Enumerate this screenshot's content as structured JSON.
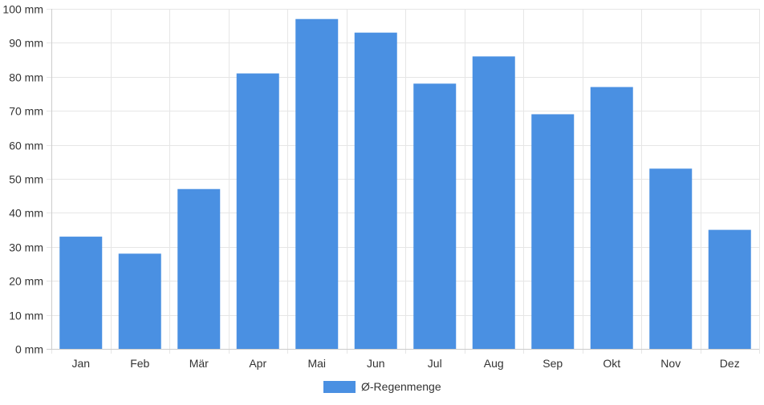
{
  "chart_data": {
    "type": "bar",
    "title": "",
    "xlabel": "",
    "ylabel": "",
    "categories": [
      "Jan",
      "Feb",
      "Mär",
      "Apr",
      "Mai",
      "Jun",
      "Jul",
      "Aug",
      "Sep",
      "Okt",
      "Nov",
      "Dez"
    ],
    "series": [
      {
        "name": "Ø-Regenmenge",
        "values": [
          33,
          28,
          47,
          81,
          97,
          93,
          78,
          86,
          69,
          77,
          53,
          35
        ],
        "color": "#4a90e2"
      }
    ],
    "ylim": [
      0,
      100
    ],
    "y_ticks": [
      0,
      10,
      20,
      30,
      40,
      50,
      60,
      70,
      80,
      90,
      100
    ],
    "y_unit": "mm",
    "grid": true,
    "legend": "bottom-center"
  }
}
